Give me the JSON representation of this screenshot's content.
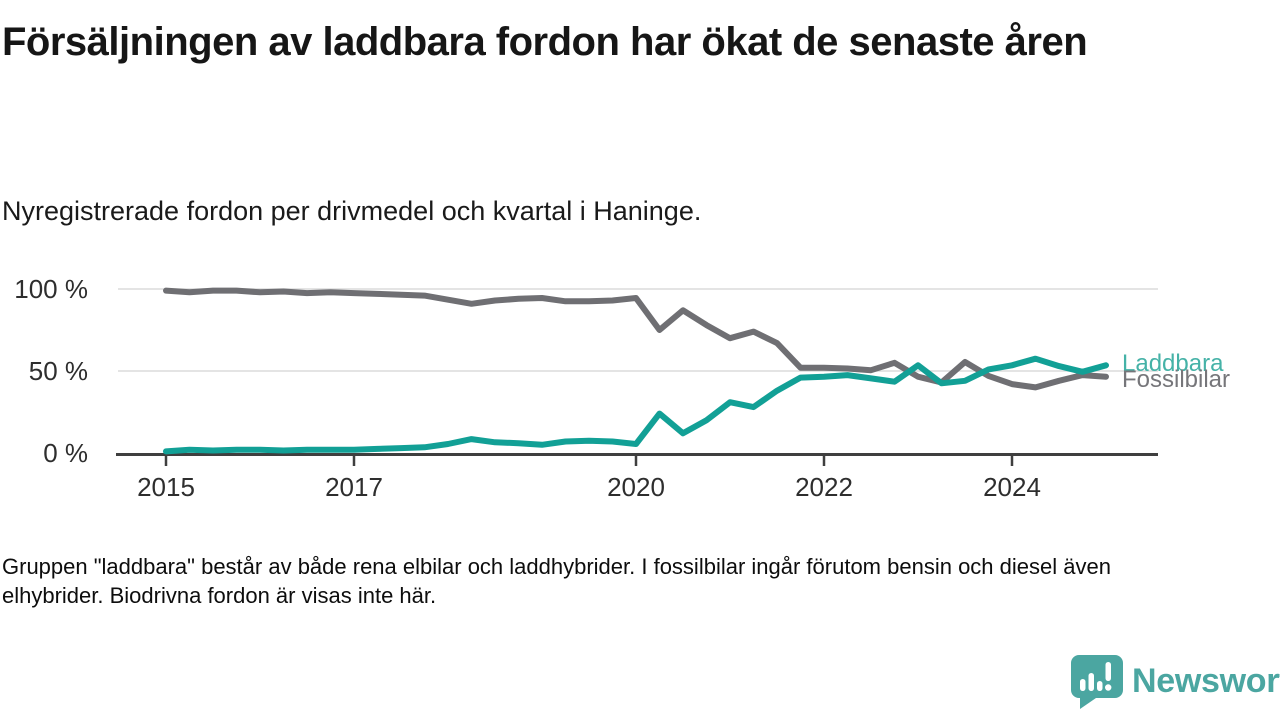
{
  "title": "Försäljningen av laddbara fordon har ökat de senaste åren",
  "subtitle": "Nyregistrerade fordon per drivmedel och kvartal i Haninge.",
  "footnote": "Gruppen \"laddbara\" består av både rena elbilar och laddhybrider. I fossilbilar ingår förutom bensin och diesel även elhybrider. Biodrivna fordon är visas inte här.",
  "legend": {
    "laddbara_label": "Laddbara",
    "fossil_label": "Fossilbilar"
  },
  "logo": {
    "text": "Newsworthy",
    "icon": "newsworthy-speech-bubble-bar-chart-icon"
  },
  "colors": {
    "laddbara_line": "#12A096",
    "laddbara_label": "#45B2A7",
    "fossil_line": "#6F6F73",
    "fossil_label": "#76767A",
    "grid": "#DBDBDB",
    "axis": "#3F3F3F",
    "tick_text": "#2E2E2E",
    "logo_teal": "#4BA6A1"
  },
  "chart_data": {
    "type": "line",
    "title": "Nyregistrerade fordon per drivmedel och kvartal i Haninge",
    "unit": "%",
    "x_start": "2015 Q1",
    "x_end": "2025 Q1",
    "x_frequency": "quarterly",
    "x_tick_labels": [
      "2015",
      "2017",
      "2020",
      "2022",
      "2024"
    ],
    "x_tick_indices": [
      0,
      8,
      20,
      28,
      36
    ],
    "y_tick_labels": [
      "100 %",
      "50 %",
      "0 %"
    ],
    "y_tick_values": [
      100,
      50,
      0
    ],
    "ylim": [
      0,
      100
    ],
    "grid": true,
    "legend_position": "right-end-of-lines",
    "series": [
      {
        "name": "Fossilbilar",
        "color": "#6F6F73",
        "values": [
          99,
          98,
          99,
          99,
          98,
          98.5,
          97.5,
          98,
          97.5,
          97,
          96.5,
          96,
          93.5,
          91,
          93,
          94,
          94.5,
          92.5,
          92.5,
          93,
          94.5,
          75,
          87,
          78,
          70,
          74,
          67,
          52,
          52,
          51.5,
          50.5,
          55,
          46.5,
          43,
          55.5,
          47,
          42,
          40,
          44,
          47.5,
          46.5
        ]
      },
      {
        "name": "Laddbara",
        "color": "#12A096",
        "values": [
          1,
          2,
          1.5,
          2,
          2,
          1.5,
          2,
          2,
          2,
          2.5,
          3,
          3.5,
          5.5,
          8.5,
          6.5,
          6,
          5,
          7,
          7.5,
          7,
          5.5,
          24,
          12,
          20,
          31,
          28,
          38,
          46,
          46.5,
          47.5,
          45.5,
          43.5,
          53.5,
          42.5,
          44,
          51,
          53.5,
          57.5,
          53,
          49.5,
          53.5
        ]
      }
    ]
  }
}
